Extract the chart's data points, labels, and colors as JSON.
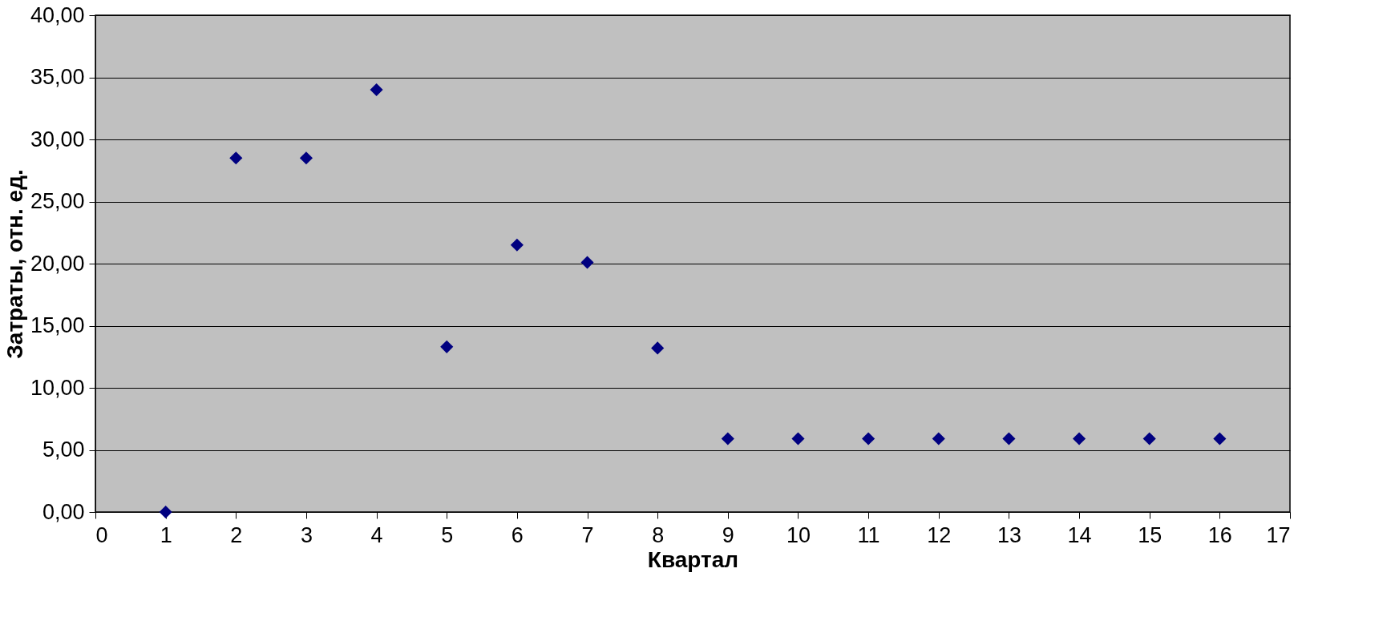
{
  "chart_data": {
    "type": "scatter",
    "xlabel": "Квартал",
    "ylabel": "Затраты, отн. ед.",
    "x": [
      1,
      2,
      3,
      4,
      5,
      6,
      7,
      8,
      9,
      10,
      11,
      12,
      13,
      14,
      15,
      16
    ],
    "series": [
      {
        "color": "#000080",
        "values": [
          0.0,
          28.5,
          28.5,
          34.0,
          13.3,
          21.5,
          20.1,
          13.2,
          5.9,
          5.9,
          5.9,
          5.9,
          5.9,
          5.9,
          5.9,
          5.9
        ]
      }
    ],
    "xlim": [
      0,
      17
    ],
    "xticks": [
      0,
      1,
      2,
      3,
      4,
      5,
      6,
      7,
      8,
      9,
      10,
      11,
      12,
      13,
      14,
      15,
      16,
      17
    ],
    "ylim": [
      0,
      40
    ],
    "yticks": [
      {
        "value": 0,
        "label": "0,00"
      },
      {
        "value": 5,
        "label": "5,00"
      },
      {
        "value": 10,
        "label": "10,00"
      },
      {
        "value": 15,
        "label": "15,00"
      },
      {
        "value": 20,
        "label": "20,00"
      },
      {
        "value": 25,
        "label": "25,00"
      },
      {
        "value": 30,
        "label": "30,00"
      },
      {
        "value": 35,
        "label": "35,00"
      },
      {
        "value": 40,
        "label": "40,00"
      }
    ],
    "grid": "y",
    "marker": "diamond",
    "legend": false
  }
}
